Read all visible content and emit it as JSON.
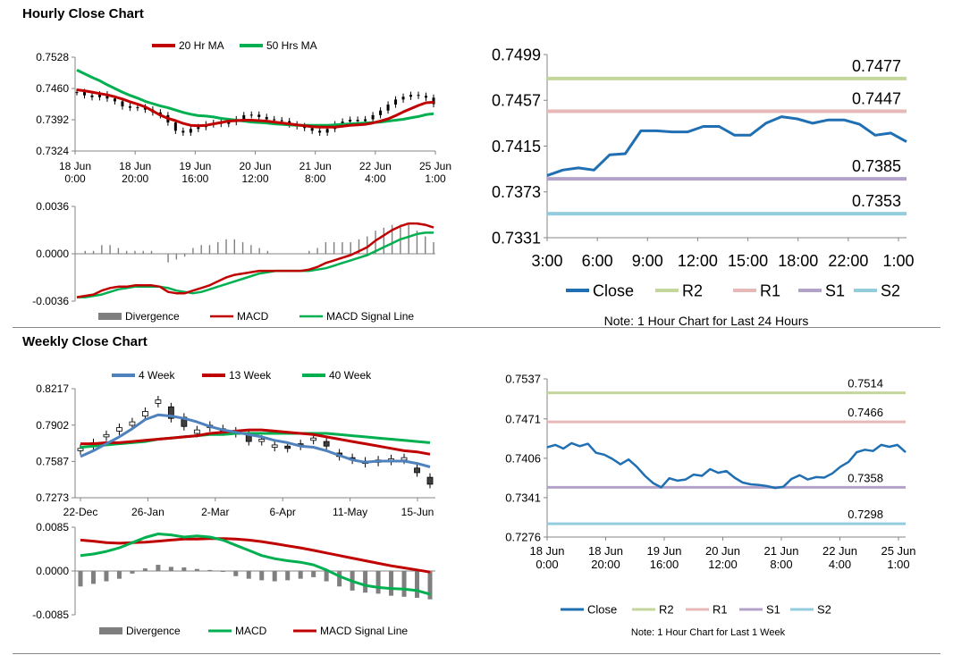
{
  "titles": {
    "hourly": "Hourly Close Chart",
    "weekly": "Weekly Close Chart"
  },
  "colors": {
    "close": "#1f6fb2",
    "r2": "#c3d69b",
    "r1": "#e6b9b8",
    "s1": "#b3a2c7",
    "s2": "#93cddd",
    "ma_red": "#c00000",
    "ma_green": "#00b050",
    "blue4": "#4f81bd",
    "divergence": "#7f7f7f",
    "candle": "#000000"
  },
  "chart_data": [
    {
      "id": "hourly-candle",
      "type": "candlestick",
      "title": "Hourly candles with moving averages",
      "legend": [
        "20 Hr MA",
        "50 Hrs MA"
      ],
      "y_ticks": [
        "0.7528",
        "0.7460",
        "0.7392",
        "0.7324"
      ],
      "ylim": [
        0.7324,
        0.7528
      ],
      "x_ticks": [
        [
          "18 Jun",
          "0:00"
        ],
        [
          "18 Jun",
          "20:00"
        ],
        [
          "19 Jun",
          "16:00"
        ],
        [
          "20 Jun",
          "12:00"
        ],
        [
          "21 Jun",
          "8:00"
        ],
        [
          "22 Jun",
          "4:00"
        ],
        [
          "25 Jun",
          "1:00"
        ]
      ],
      "close": [
        0.7452,
        0.7445,
        0.7441,
        0.7447,
        0.7438,
        0.7432,
        0.7421,
        0.7418,
        0.7419,
        0.7414,
        0.7408,
        0.7402,
        0.7386,
        0.7368,
        0.7364,
        0.7372,
        0.7376,
        0.7382,
        0.7385,
        0.7383,
        0.7387,
        0.7393,
        0.7402,
        0.7403,
        0.7398,
        0.7393,
        0.7391,
        0.7389,
        0.7382,
        0.7378,
        0.7374,
        0.7368,
        0.7364,
        0.7372,
        0.7382,
        0.7388,
        0.7392,
        0.7389,
        0.7393,
        0.7402,
        0.7412,
        0.7425,
        0.7436,
        0.7442,
        0.7446,
        0.7444,
        0.744,
        0.7426
      ],
      "ma20": [
        0.7457,
        0.7455,
        0.7452,
        0.7449,
        0.7446,
        0.7442,
        0.7437,
        0.7431,
        0.7426,
        0.742,
        0.7411,
        0.7402,
        0.7395,
        0.739,
        0.7384,
        0.738,
        0.7379,
        0.738,
        0.7383,
        0.7386,
        0.7389,
        0.739,
        0.7391,
        0.7391,
        0.739,
        0.7389,
        0.7387,
        0.7385,
        0.7383,
        0.7381,
        0.7379,
        0.7377,
        0.7376,
        0.7376,
        0.7376,
        0.7378,
        0.738,
        0.7381,
        0.7382,
        0.7385,
        0.7389,
        0.7394,
        0.7401,
        0.7409,
        0.7416,
        0.7423,
        0.7429,
        0.743
      ],
      "ma50": [
        0.75,
        0.7492,
        0.7484,
        0.7477,
        0.7468,
        0.746,
        0.7452,
        0.7445,
        0.7439,
        0.7432,
        0.7427,
        0.7422,
        0.7418,
        0.7413,
        0.7408,
        0.7404,
        0.7401,
        0.74,
        0.7398,
        0.7395,
        0.7393,
        0.7391,
        0.7389,
        0.7387,
        0.7386,
        0.7385,
        0.7383,
        0.7382,
        0.7381,
        0.738,
        0.738,
        0.738,
        0.738,
        0.738,
        0.7381,
        0.7382,
        0.7383,
        0.7384,
        0.7385,
        0.7386,
        0.7387,
        0.7389,
        0.7391,
        0.7393,
        0.7396,
        0.7399,
        0.7403,
        0.7405
      ]
    },
    {
      "id": "hourly-macd",
      "type": "macd",
      "legend": [
        "Divergence",
        "MACD",
        "MACD Signal Line"
      ],
      "y_ticks": [
        "0.0036",
        "0.0000",
        "-0.0036"
      ],
      "ylim": [
        -0.0036,
        0.0036
      ],
      "macd": [
        -0.0033,
        -0.0032,
        -0.0031,
        -0.0028,
        -0.0026,
        -0.0025,
        -0.0025,
        -0.0024,
        -0.0024,
        -0.0024,
        -0.0025,
        -0.0029,
        -0.003,
        -0.003,
        -0.0028,
        -0.0026,
        -0.0024,
        -0.0021,
        -0.0018,
        -0.0016,
        -0.0015,
        -0.0014,
        -0.0013,
        -0.0013,
        -0.0013,
        -0.0013,
        -0.0013,
        -0.0013,
        -0.0012,
        -0.001,
        -0.0007,
        -0.0005,
        -0.0003,
        -0.0001,
        0.0002,
        0.0005,
        0.001,
        0.0014,
        0.0018,
        0.0021,
        0.0023,
        0.0023,
        0.0022,
        0.002
      ],
      "signal": [
        -0.0033,
        -0.0033,
        -0.0032,
        -0.0031,
        -0.0029,
        -0.0027,
        -0.0026,
        -0.0025,
        -0.0025,
        -0.0025,
        -0.0025,
        -0.0026,
        -0.0028,
        -0.0029,
        -0.003,
        -0.0029,
        -0.0027,
        -0.0025,
        -0.0023,
        -0.0021,
        -0.0019,
        -0.0017,
        -0.0015,
        -0.0014,
        -0.0013,
        -0.0013,
        -0.0013,
        -0.0013,
        -0.0013,
        -0.0012,
        -0.0011,
        -0.0009,
        -0.0007,
        -0.0005,
        -0.0003,
        -0.0001,
        0.0002,
        0.0005,
        0.0008,
        0.0011,
        0.0013,
        0.0015,
        0.0016,
        0.0016
      ]
    },
    {
      "id": "hourly-pivot",
      "type": "line",
      "y_ticks": [
        "0.7499",
        "0.7457",
        "0.7415",
        "0.7373",
        "0.7331"
      ],
      "ylim": [
        0.7331,
        0.7499
      ],
      "x_ticks": [
        "3:00",
        "6:00",
        "9:00",
        "12:00",
        "15:00",
        "18:00",
        "22:00",
        "1:00"
      ],
      "close": [
        0.7388,
        0.7393,
        0.7395,
        0.7393,
        0.7407,
        0.7408,
        0.7429,
        0.7429,
        0.7428,
        0.7428,
        0.7433,
        0.7433,
        0.7425,
        0.7425,
        0.7436,
        0.7442,
        0.744,
        0.7436,
        0.7439,
        0.7439,
        0.7435,
        0.7425,
        0.7427,
        0.7419
      ],
      "levels": {
        "R2": 0.7477,
        "R1": 0.7447,
        "S1": 0.7385,
        "S2": 0.7353
      },
      "level_labels": {
        "R2": "0.7477",
        "R1": "0.7447",
        "S1": "0.7385",
        "S2": "0.7353"
      },
      "legend": [
        "Close",
        "R2",
        "R1",
        "S1",
        "S2"
      ],
      "note": "Note: 1 Hour Chart for Last 24 Hours"
    },
    {
      "id": "weekly-candle",
      "type": "candlestick",
      "legend": [
        "4 Week",
        "13 Week",
        "40 Week"
      ],
      "y_ticks": [
        "0.8217",
        "0.7902",
        "0.7587",
        "0.7273"
      ],
      "ylim": [
        0.7273,
        0.8217
      ],
      "x_ticks": [
        "22-Dec",
        "26-Jan",
        "2-Mar",
        "6-Apr",
        "11-May",
        "15-Jun"
      ],
      "candles": [
        [
          0.768,
          0.77
        ],
        [
          0.772,
          0.775
        ],
        [
          0.78,
          0.782
        ],
        [
          0.785,
          0.788
        ],
        [
          0.79,
          0.793
        ],
        [
          0.798,
          0.802
        ],
        [
          0.809,
          0.812
        ],
        [
          0.806,
          0.796
        ],
        [
          0.797,
          0.789
        ],
        [
          0.783,
          0.786
        ],
        [
          0.788,
          0.79
        ],
        [
          0.785,
          0.787
        ],
        [
          0.783,
          0.785
        ],
        [
          0.782,
          0.776
        ],
        [
          0.776,
          0.778
        ],
        [
          0.771,
          0.773
        ],
        [
          0.772,
          0.77
        ],
        [
          0.774,
          0.772
        ],
        [
          0.777,
          0.779
        ],
        [
          0.776,
          0.772
        ],
        [
          0.766,
          0.763
        ],
        [
          0.762,
          0.76
        ],
        [
          0.759,
          0.757
        ],
        [
          0.758,
          0.76
        ],
        [
          0.759,
          0.761
        ],
        [
          0.76,
          0.762
        ],
        [
          0.753,
          0.749
        ],
        [
          0.745,
          0.739
        ]
      ],
      "ma4": [
        0.763,
        0.768,
        0.774,
        0.78,
        0.787,
        0.795,
        0.799,
        0.798,
        0.796,
        0.793,
        0.789,
        0.786,
        0.784,
        0.782,
        0.78,
        0.777,
        0.775,
        0.772,
        0.771,
        0.768,
        0.764,
        0.76,
        0.758,
        0.759,
        0.759,
        0.759,
        0.757,
        0.754
      ],
      "ma13": [
        0.774,
        0.774,
        0.775,
        0.775,
        0.776,
        0.777,
        0.778,
        0.779,
        0.78,
        0.781,
        0.783,
        0.784,
        0.785,
        0.786,
        0.786,
        0.785,
        0.784,
        0.783,
        0.782,
        0.78,
        0.778,
        0.776,
        0.774,
        0.772,
        0.77,
        0.768,
        0.767,
        0.765
      ],
      "ma40": [
        0.771,
        0.772,
        0.773,
        0.774,
        0.775,
        0.776,
        0.778,
        0.779,
        0.78,
        0.781,
        0.782,
        0.782,
        0.783,
        0.783,
        0.783,
        0.783,
        0.783,
        0.783,
        0.783,
        0.783,
        0.782,
        0.781,
        0.78,
        0.779,
        0.778,
        0.777,
        0.776,
        0.775
      ]
    },
    {
      "id": "weekly-macd",
      "type": "macd",
      "legend": [
        "Divergence",
        "MACD",
        "MACD Signal Line"
      ],
      "y_ticks": [
        "0.0085",
        "0.0000",
        "-0.0085"
      ],
      "ylim": [
        -0.0085,
        0.0085
      ],
      "divergence": [
        -0.003,
        -0.0025,
        -0.002,
        -0.0015,
        -0.0005,
        0.0005,
        0.0012,
        0.0008,
        0.0007,
        0.0004,
        0.0002,
        0.0,
        -0.001,
        -0.0015,
        -0.0018,
        -0.002,
        -0.0018,
        -0.0015,
        -0.0012,
        -0.002,
        -0.003,
        -0.0038,
        -0.0042,
        -0.0044,
        -0.0048,
        -0.005,
        -0.0052,
        -0.0055
      ],
      "macd": [
        0.003,
        0.0033,
        0.0038,
        0.0045,
        0.0055,
        0.0065,
        0.0072,
        0.007,
        0.0066,
        0.0068,
        0.0066,
        0.006,
        0.005,
        0.004,
        0.003,
        0.0024,
        0.002,
        0.0017,
        0.0012,
        0.0002,
        -0.001,
        -0.002,
        -0.0028,
        -0.0032,
        -0.0034,
        -0.0035,
        -0.0038,
        -0.0045
      ],
      "signal": [
        0.006,
        0.0058,
        0.0055,
        0.0054,
        0.0055,
        0.0056,
        0.0058,
        0.006,
        0.0062,
        0.0062,
        0.0063,
        0.0063,
        0.0062,
        0.006,
        0.0057,
        0.0053,
        0.0049,
        0.0045,
        0.004,
        0.0035,
        0.003,
        0.0025,
        0.002,
        0.0015,
        0.001,
        0.0006,
        0.0002,
        -0.0002
      ]
    },
    {
      "id": "weekly-pivot",
      "type": "line",
      "y_ticks": [
        "0.7537",
        "0.7471",
        "0.7406",
        "0.7341",
        "0.7276"
      ],
      "ylim": [
        0.7276,
        0.7537
      ],
      "x_ticks": [
        [
          "18 Jun",
          "0:00"
        ],
        [
          "18 Jun",
          "20:00"
        ],
        [
          "19 Jun",
          "16:00"
        ],
        [
          "20 Jun",
          "12:00"
        ],
        [
          "21 Jun",
          "8:00"
        ],
        [
          "22 Jun",
          "4:00"
        ],
        [
          "25 Jun",
          "1:00"
        ]
      ],
      "close": [
        0.7424,
        0.7428,
        0.7422,
        0.7431,
        0.7426,
        0.743,
        0.7415,
        0.7412,
        0.7405,
        0.7396,
        0.7404,
        0.7392,
        0.7377,
        0.7365,
        0.7358,
        0.7373,
        0.7369,
        0.7371,
        0.7379,
        0.7377,
        0.7388,
        0.7382,
        0.7385,
        0.7374,
        0.7366,
        0.7363,
        0.7362,
        0.736,
        0.7357,
        0.7359,
        0.7372,
        0.7378,
        0.7371,
        0.7375,
        0.7374,
        0.7381,
        0.7392,
        0.74,
        0.7416,
        0.742,
        0.7418,
        0.7428,
        0.7425,
        0.7428,
        0.7416
      ],
      "levels": {
        "R2": 0.7514,
        "R1": 0.7466,
        "S1": 0.7358,
        "S2": 0.7298
      },
      "level_labels": {
        "R2": "0.7514",
        "R1": "0.7466",
        "S1": "0.7358",
        "S2": "0.7298"
      },
      "legend": [
        "Close",
        "R2",
        "R1",
        "S1",
        "S2"
      ],
      "note": "Note: 1 Hour Chart for Last 1 Week"
    }
  ]
}
